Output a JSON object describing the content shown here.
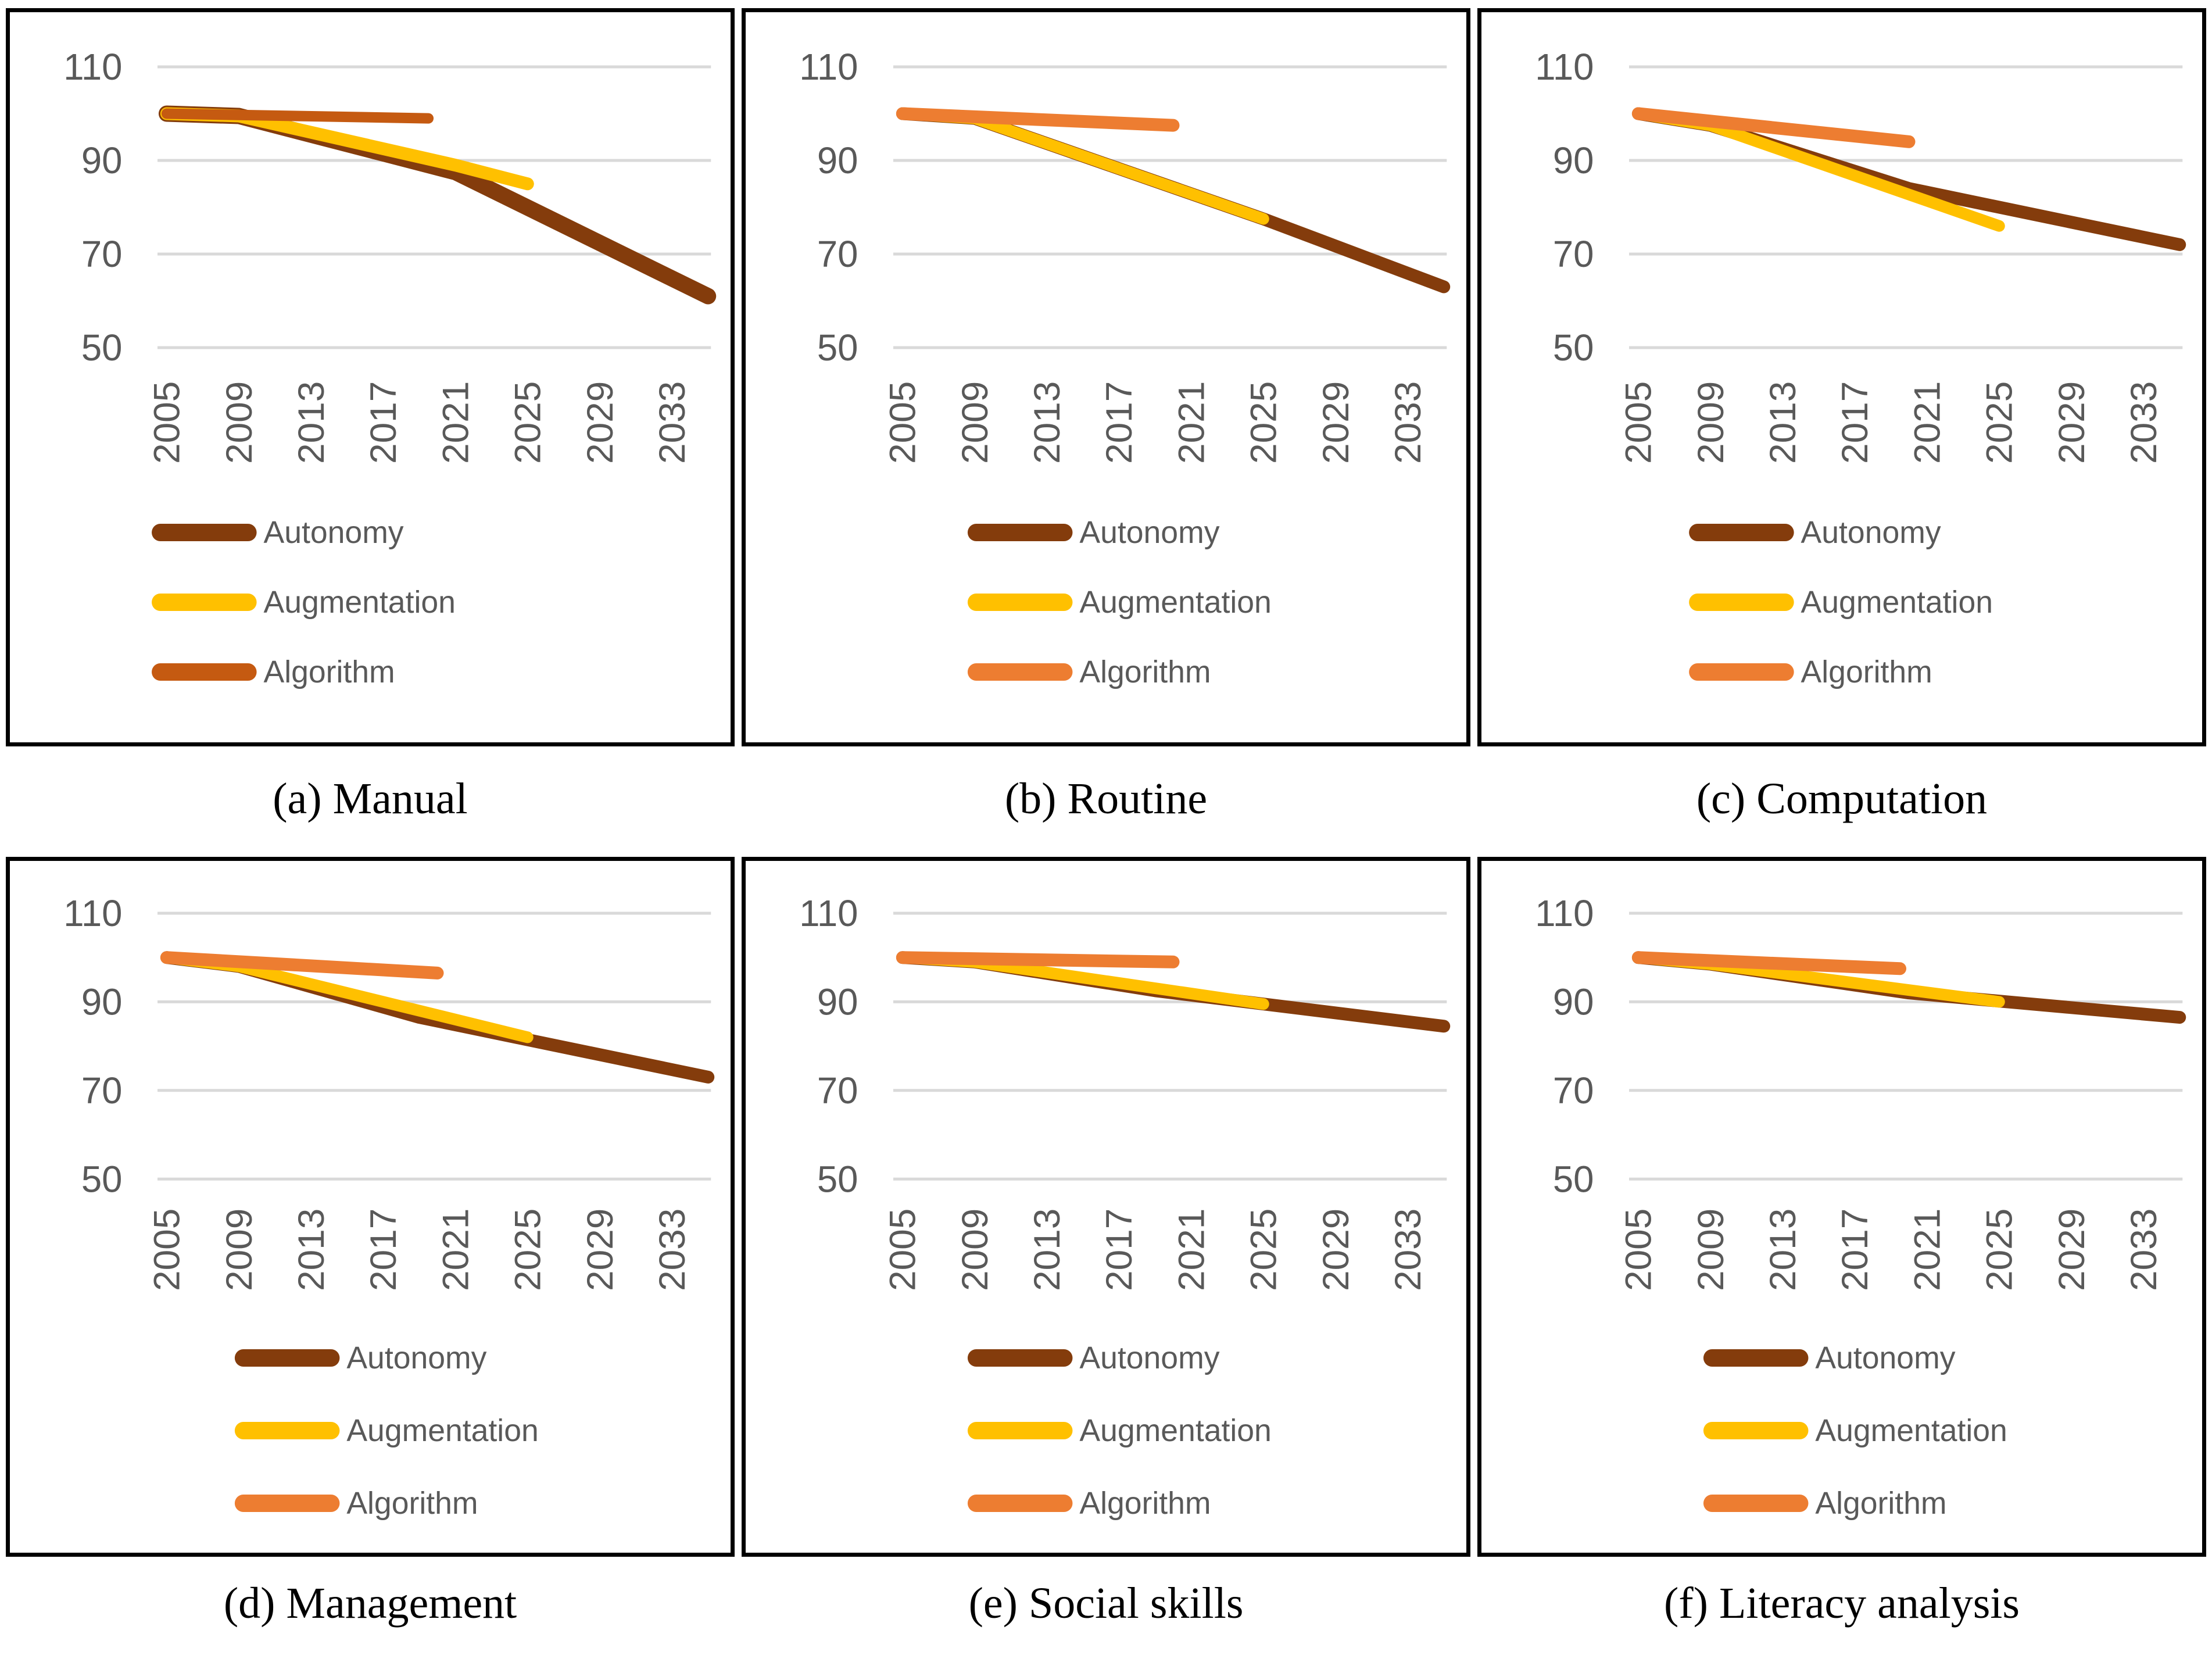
{
  "page": {
    "background": "#ffffff"
  },
  "colors": {
    "autonomy": "#843C0C",
    "augmentation": "#FFC000",
    "algorithm_dark": "#C55A11",
    "algorithm_light": "#ED7D31",
    "axis_text": "#595959",
    "gridline": "#D9D9D9",
    "panel_border": "#000000",
    "caption_text": "#000000"
  },
  "legend_labels": [
    "Autonomy",
    "Augmentation",
    "Algorithm"
  ],
  "chart_data": [
    {
      "id": "manual",
      "caption": "(a) Manual",
      "type": "line",
      "grid": true,
      "legend_position": "bottom-left",
      "xlim": [
        2005,
        2035
      ],
      "ylim": [
        50,
        110
      ],
      "x_ticks": [
        2005,
        2009,
        2013,
        2017,
        2021,
        2025,
        2029,
        2033
      ],
      "y_ticks": [
        110,
        90,
        70,
        50
      ],
      "legend_indent": 246,
      "series": [
        {
          "name": "Autonomy",
          "color": "#843C0C",
          "width": 28,
          "points": [
            [
              2005,
              100
            ],
            [
              2009,
              99.5
            ],
            [
              2021,
              87.5
            ],
            [
              2035,
              61
            ]
          ]
        },
        {
          "name": "Augmentation",
          "color": "#FFC000",
          "width": 22,
          "points": [
            [
              2005,
              100
            ],
            [
              2009,
              99.5
            ],
            [
              2021,
              89
            ],
            [
              2025,
              85
            ]
          ]
        },
        {
          "name": "Algorithm",
          "color": "#C55A11",
          "width": 18,
          "points": [
            [
              2005,
              100
            ],
            [
              2019.5,
              99
            ]
          ]
        }
      ]
    },
    {
      "id": "routine",
      "caption": "(b) Routine",
      "type": "line",
      "grid": true,
      "legend_position": "bottom-left",
      "xlim": [
        2005,
        2035
      ],
      "ylim": [
        50,
        110
      ],
      "x_ticks": [
        2005,
        2009,
        2013,
        2017,
        2021,
        2025,
        2029,
        2033
      ],
      "y_ticks": [
        110,
        90,
        70,
        50
      ],
      "legend_indent": 385,
      "series": [
        {
          "name": "Autonomy",
          "color": "#843C0C",
          "width": 22,
          "points": [
            [
              2005,
              100
            ],
            [
              2009,
              99
            ],
            [
              2025,
              77.5
            ],
            [
              2035,
              63
            ]
          ]
        },
        {
          "name": "Augmentation",
          "color": "#FFC000",
          "width": 20,
          "points": [
            [
              2005,
              100
            ],
            [
              2009,
              99
            ],
            [
              2025,
              77.5
            ]
          ]
        },
        {
          "name": "Algorithm",
          "color": "#ED7D31",
          "width": 22,
          "points": [
            [
              2005,
              100
            ],
            [
              2020,
              97.5
            ]
          ]
        }
      ]
    },
    {
      "id": "computation",
      "caption": "(c) Computation",
      "type": "line",
      "grid": true,
      "legend_position": "bottom-left",
      "xlim": [
        2005,
        2035
      ],
      "ylim": [
        50,
        110
      ],
      "x_ticks": [
        2005,
        2009,
        2013,
        2017,
        2021,
        2025,
        2029,
        2033
      ],
      "y_ticks": [
        110,
        90,
        70,
        50
      ],
      "legend_indent": 360,
      "series": [
        {
          "name": "Autonomy",
          "color": "#843C0C",
          "width": 22,
          "points": [
            [
              2005,
              100
            ],
            [
              2009,
              97.5
            ],
            [
              2020,
              84
            ],
            [
              2035,
              72
            ]
          ]
        },
        {
          "name": "Augmentation",
          "color": "#FFC000",
          "width": 20,
          "points": [
            [
              2005,
              100
            ],
            [
              2009,
              97.5
            ],
            [
              2025,
              76
            ]
          ]
        },
        {
          "name": "Algorithm",
          "color": "#ED7D31",
          "width": 22,
          "points": [
            [
              2005,
              100
            ],
            [
              2020,
              94
            ]
          ]
        }
      ]
    },
    {
      "id": "management",
      "caption": "(d) Management",
      "type": "line",
      "grid": true,
      "legend_position": "bottom-left",
      "xlim": [
        2005,
        2035
      ],
      "ylim": [
        50,
        110
      ],
      "x_ticks": [
        2005,
        2009,
        2013,
        2017,
        2021,
        2025,
        2029,
        2033
      ],
      "y_ticks": [
        110,
        90,
        70,
        50
      ],
      "legend_indent": 390,
      "series": [
        {
          "name": "Autonomy",
          "color": "#843C0C",
          "width": 22,
          "points": [
            [
              2005,
              100
            ],
            [
              2009,
              98
            ],
            [
              2019,
              86.5
            ],
            [
              2035,
              73
            ]
          ]
        },
        {
          "name": "Augmentation",
          "color": "#FFC000",
          "width": 20,
          "points": [
            [
              2005,
              100
            ],
            [
              2009,
              98
            ],
            [
              2025,
              82
            ]
          ]
        },
        {
          "name": "Algorithm",
          "color": "#ED7D31",
          "width": 22,
          "points": [
            [
              2005,
              100
            ],
            [
              2020,
              96.5
            ]
          ]
        }
      ]
    },
    {
      "id": "social-skills",
      "caption": "(e) Social skills",
      "type": "line",
      "grid": true,
      "legend_position": "bottom-left",
      "xlim": [
        2005,
        2035
      ],
      "ylim": [
        50,
        110
      ],
      "x_ticks": [
        2005,
        2009,
        2013,
        2017,
        2021,
        2025,
        2029,
        2033
      ],
      "y_ticks": [
        110,
        90,
        70,
        50
      ],
      "legend_indent": 385,
      "series": [
        {
          "name": "Autonomy",
          "color": "#843C0C",
          "width": 22,
          "points": [
            [
              2005,
              100
            ],
            [
              2009,
              99
            ],
            [
              2019,
              92.5
            ],
            [
              2035,
              84.5
            ]
          ]
        },
        {
          "name": "Augmentation",
          "color": "#FFC000",
          "width": 20,
          "points": [
            [
              2005,
              100
            ],
            [
              2009,
              99
            ],
            [
              2025,
              89.5
            ]
          ]
        },
        {
          "name": "Algorithm",
          "color": "#ED7D31",
          "width": 22,
          "points": [
            [
              2005,
              100
            ],
            [
              2020,
              99
            ]
          ]
        }
      ]
    },
    {
      "id": "literacy-analysis",
      "caption": "(f) Literacy analysis",
      "type": "line",
      "grid": true,
      "legend_position": "bottom-left",
      "xlim": [
        2005,
        2035
      ],
      "ylim": [
        50,
        110
      ],
      "x_ticks": [
        2005,
        2009,
        2013,
        2017,
        2021,
        2025,
        2029,
        2033
      ],
      "y_ticks": [
        110,
        90,
        70,
        50
      ],
      "legend_indent": 385,
      "series": [
        {
          "name": "Autonomy",
          "color": "#843C0C",
          "width": 22,
          "points": [
            [
              2005,
              100
            ],
            [
              2009,
              98.5
            ],
            [
              2020,
              92
            ],
            [
              2035,
              86.5
            ]
          ]
        },
        {
          "name": "Augmentation",
          "color": "#FFC000",
          "width": 20,
          "points": [
            [
              2005,
              100
            ],
            [
              2009,
              98.5
            ],
            [
              2025,
              90
            ]
          ]
        },
        {
          "name": "Algorithm",
          "color": "#ED7D31",
          "width": 22,
          "points": [
            [
              2005,
              100
            ],
            [
              2019.5,
              97.5
            ]
          ]
        }
      ]
    }
  ]
}
